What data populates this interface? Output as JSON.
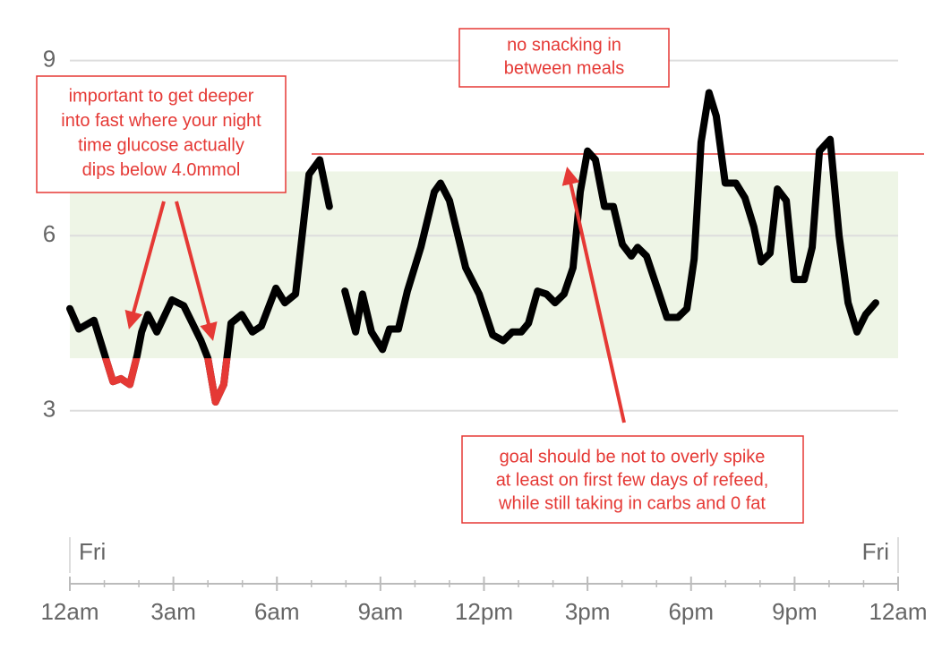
{
  "chart_data": {
    "type": "line",
    "x": [
      0,
      0.26,
      0.7,
      1.04,
      1.25,
      1.48,
      1.74,
      1.95,
      2.08,
      2.26,
      2.52,
      2.96,
      3.3,
      3.55,
      3.8,
      4.0,
      4.22,
      4.46,
      4.67,
      4.98,
      5.29,
      5.55,
      5.97,
      6.23,
      6.54,
      6.93,
      7.24,
      7.52,
      7.75,
      7.97,
      8.28,
      8.48,
      8.74,
      9.06,
      9.26,
      9.52,
      9.78,
      10.17,
      10.56,
      10.74,
      11.0,
      11.47,
      11.86,
      12.25,
      12.56,
      12.82,
      13.08,
      13.29,
      13.55,
      13.81,
      14.06,
      14.32,
      14.58,
      14.79,
      15.0,
      15.23,
      15.49,
      15.75,
      16.01,
      16.27,
      16.45,
      16.71,
      17.05,
      17.3,
      17.62,
      17.88,
      18.09,
      18.29,
      18.52,
      18.73,
      18.99,
      19.3,
      19.56,
      19.82,
      20.03,
      20.29,
      20.5,
      20.76,
      20.99,
      21.28,
      21.51,
      21.72,
      22.03,
      22.29,
      22.55,
      22.81,
      23.06,
      23.35
    ],
    "values": [
      4.75,
      4.4,
      4.55,
      3.9,
      3.5,
      3.55,
      3.45,
      3.95,
      4.35,
      4.65,
      4.35,
      4.9,
      4.8,
      4.5,
      4.2,
      3.9,
      3.15,
      3.45,
      4.5,
      4.65,
      4.35,
      4.45,
      5.1,
      4.85,
      5.0,
      7.05,
      7.3,
      6.5,
      null,
      5.05,
      4.35,
      5.0,
      4.35,
      4.05,
      4.4,
      4.4,
      5.05,
      5.8,
      6.75,
      6.9,
      6.6,
      5.45,
      5.0,
      4.3,
      4.2,
      4.35,
      4.35,
      4.5,
      5.05,
      5.0,
      4.85,
      5.0,
      5.45,
      6.75,
      7.45,
      7.3,
      6.5,
      6.5,
      5.85,
      5.65,
      5.8,
      5.65,
      5.05,
      4.6,
      4.6,
      4.75,
      5.6,
      7.6,
      8.45,
      8.05,
      6.9,
      6.9,
      6.65,
      6.15,
      5.55,
      5.7,
      6.8,
      6.6,
      5.25,
      5.25,
      5.8,
      7.45,
      7.65,
      6.0,
      4.85,
      4.35,
      4.65,
      4.85
    ],
    "color": "#000000",
    "low_color": "#e53935",
    "target_range": [
      3.9,
      7.1
    ],
    "reference_line": 7.4,
    "xlim": [
      0,
      24
    ],
    "ylim": [
      2,
      9.7
    ],
    "yticks": [
      3,
      6,
      9
    ],
    "xticks": [
      {
        "value": 0,
        "label": "12am"
      },
      {
        "value": 3,
        "label": "3am"
      },
      {
        "value": 6,
        "label": "6am"
      },
      {
        "value": 9,
        "label": "9am"
      },
      {
        "value": 12,
        "label": "12pm"
      },
      {
        "value": 15,
        "label": "3pm"
      },
      {
        "value": 18,
        "label": "6pm"
      },
      {
        "value": 21,
        "label": "9pm"
      },
      {
        "value": 24,
        "label": "12am"
      }
    ],
    "day_labels": [
      {
        "value": 0,
        "label": "Fri"
      },
      {
        "value": 24,
        "label": "Fri"
      }
    ],
    "grid": true,
    "annotations": [
      {
        "lines": [
          "important to get deeper",
          "into fast where your night",
          "time glucose actually",
          "dips below 4.0mmol"
        ]
      },
      {
        "lines": [
          "no snacking in",
          "between meals"
        ]
      },
      {
        "lines": [
          "goal should be not to overly spike",
          "at least on first few days of refeed,",
          "while still taking in carbs and 0 fat"
        ]
      }
    ]
  }
}
